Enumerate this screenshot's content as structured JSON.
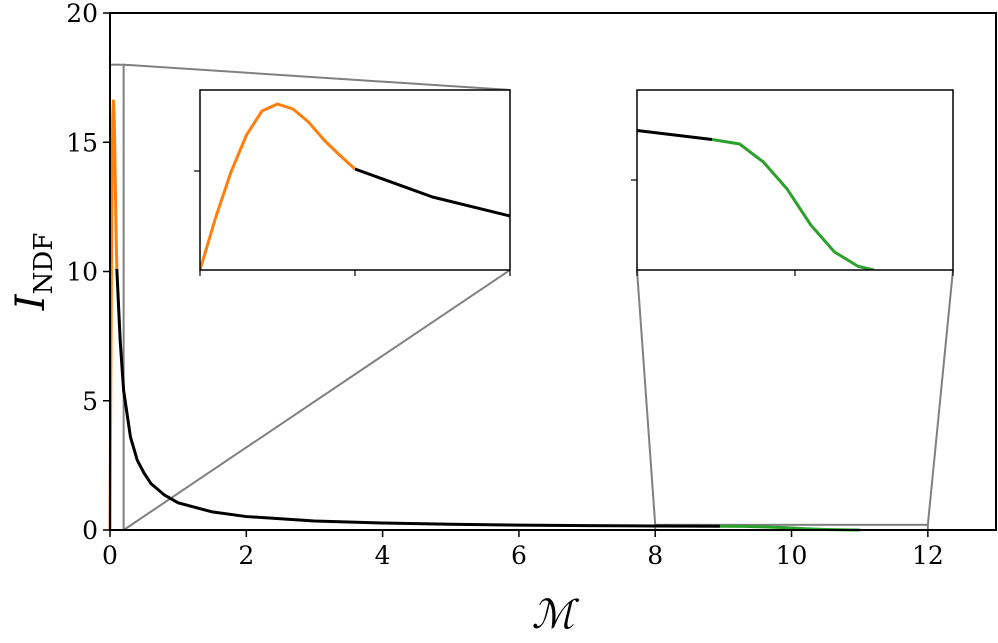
{
  "chart_data": {
    "type": "line",
    "xlabel": "ℳ",
    "ylabel": "I",
    "ylabel_subscript": "NDF",
    "xlim": [
      0,
      13
    ],
    "ylim": [
      0,
      20
    ],
    "xticks": [
      0,
      2,
      4,
      6,
      8,
      10,
      12
    ],
    "yticks": [
      0,
      5,
      10,
      15,
      20
    ],
    "colors": {
      "low_mach": "#ff7f0e",
      "main": "#000000",
      "high_mach": "#2ca02c",
      "zoom_box": "#808080"
    },
    "series": [
      {
        "color": "low_mach",
        "x": [
          0.0,
          0.01,
          0.02,
          0.03,
          0.04,
          0.05,
          0.06,
          0.07,
          0.08,
          0.09,
          0.1
        ],
        "y": [
          0.0,
          5.2,
          9.8,
          13.5,
          15.9,
          16.6,
          16.1,
          14.8,
          13.0,
          11.5,
          10.1
        ]
      },
      {
        "color": "main",
        "x": [
          0.1,
          0.15,
          0.2,
          0.3,
          0.4,
          0.5,
          0.6,
          0.8,
          1.0,
          1.5,
          2.0,
          3.0,
          4.0,
          5.0,
          6.0,
          7.0,
          8.0,
          8.95
        ],
        "y": [
          10.1,
          7.3,
          5.4,
          3.6,
          2.7,
          2.2,
          1.8,
          1.35,
          1.05,
          0.7,
          0.52,
          0.35,
          0.27,
          0.22,
          0.19,
          0.17,
          0.155,
          0.145
        ]
      },
      {
        "color": "high_mach",
        "x": [
          8.95,
          9.3,
          9.6,
          9.9,
          10.2,
          10.5,
          10.8,
          11.0
        ],
        "y": [
          0.145,
          0.14,
          0.12,
          0.09,
          0.05,
          0.02,
          0.004,
          0.0
        ]
      }
    ],
    "insets": [
      {
        "position": "upper-left",
        "xlim": [
          0,
          0.2
        ],
        "ylim": [
          0,
          18
        ]
      },
      {
        "position": "upper-right",
        "xlim": [
          8,
          12
        ],
        "ylim": [
          0,
          0.2
        ]
      }
    ]
  }
}
